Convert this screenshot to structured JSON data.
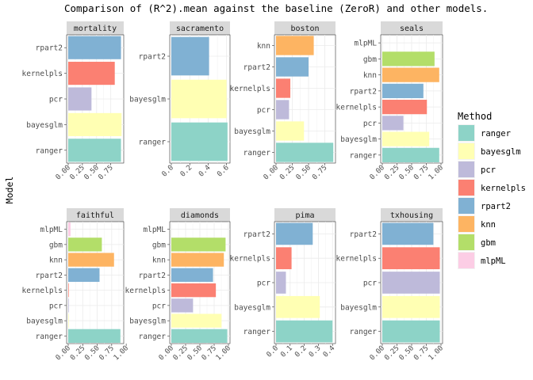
{
  "chart_data": {
    "type": "bar",
    "orientation": "horizontal",
    "title": "Comparison of (R^2).mean against the baseline (ZeroR) and other models.",
    "ylabel": "Model",
    "xlabel": "",
    "legend": {
      "title": "Method",
      "position": "right",
      "entries": [
        "ranger",
        "bayesglm",
        "pcr",
        "kernelpls",
        "rpart2",
        "knn",
        "gbm",
        "mlpML"
      ]
    },
    "colors": {
      "ranger": "#8DD3C7",
      "bayesglm": "#FFFFB3",
      "pcr": "#BEBADA",
      "kernelpls": "#FB8072",
      "rpart2": "#80B1D3",
      "knn": "#FDB462",
      "gbm": "#B3DE69",
      "mlpML": "#FCCDE5"
    },
    "grid": true,
    "panels": [
      {
        "name": "mortality",
        "categories": [
          "rpart2",
          "kernelpls",
          "pcr",
          "bayesglm",
          "ranger"
        ],
        "values": [
          0.93,
          0.82,
          0.41,
          0.94,
          0.93
        ],
        "xlim": [
          0,
          0.95
        ],
        "xticks": [
          "0.00",
          "0.25",
          "0.50",
          "0.75"
        ]
      },
      {
        "name": "sacramento",
        "categories": [
          "rpart2",
          "bayesglm",
          "ranger"
        ],
        "values": [
          0.41,
          0.6,
          0.61
        ],
        "xlim": [
          0,
          0.62
        ],
        "xticks": [
          "0.0",
          "0.2",
          "0.4",
          "0.6"
        ]
      },
      {
        "name": "boston",
        "categories": [
          "knn",
          "rpart2",
          "kernelpls",
          "pcr",
          "bayesglm",
          "ranger"
        ],
        "values": [
          0.58,
          0.5,
          0.22,
          0.2,
          0.43,
          0.88
        ],
        "xlim": [
          0,
          0.89
        ],
        "xticks": [
          "0.00",
          "0.25",
          "0.50",
          "0.75"
        ]
      },
      {
        "name": "seals",
        "categories": [
          "mlpML",
          "gbm",
          "knn",
          "rpart2",
          "kernelpls",
          "pcr",
          "bayesglm",
          "ranger"
        ],
        "values": [
          0.0,
          0.89,
          0.97,
          0.7,
          0.76,
          0.36,
          0.8,
          0.97
        ],
        "xlim": [
          0,
          1.0
        ],
        "xticks": [
          "0.00",
          "0.25",
          "0.50",
          "0.75",
          "1.00"
        ]
      },
      {
        "name": "faithful",
        "categories": [
          "mlpML",
          "gbm",
          "knn",
          "rpart2",
          "kernelpls",
          "pcr",
          "bayesglm",
          "ranger"
        ],
        "values": [
          0.04,
          0.58,
          0.79,
          0.54,
          0.01,
          0.01,
          0.01,
          0.9
        ],
        "xlim": [
          0,
          0.93
        ],
        "xticks": [
          "0.00",
          "0.25",
          "0.50",
          "0.75",
          "1.00"
        ]
      },
      {
        "name": "diamonds",
        "categories": [
          "mlpML",
          "gbm",
          "knn",
          "rpart2",
          "kernelpls",
          "pcr",
          "bayesglm",
          "ranger"
        ],
        "values": [
          0.0,
          0.95,
          0.92,
          0.73,
          0.78,
          0.38,
          0.88,
          0.98
        ],
        "xlim": [
          0,
          1.0
        ],
        "xticks": [
          "0.00",
          "0.25",
          "0.50",
          "0.75",
          "1.00"
        ]
      },
      {
        "name": "pima",
        "categories": [
          "rpart2",
          "kernelpls",
          "pcr",
          "bayesglm",
          "ranger"
        ],
        "values": [
          0.26,
          0.11,
          0.07,
          0.31,
          0.4
        ],
        "xlim": [
          0,
          0.41
        ],
        "xticks": [
          "0.0",
          "0.1",
          "0.2",
          "0.3",
          "0.4"
        ]
      },
      {
        "name": "txhousing",
        "categories": [
          "rpart2",
          "kernelpls",
          "pcr",
          "bayesglm",
          "ranger"
        ],
        "values": [
          0.87,
          0.98,
          0.98,
          0.98,
          0.98
        ],
        "xlim": [
          0,
          1.0
        ],
        "xticks": [
          "0.00",
          "0.25",
          "0.50",
          "0.75",
          "1.00"
        ]
      }
    ]
  }
}
